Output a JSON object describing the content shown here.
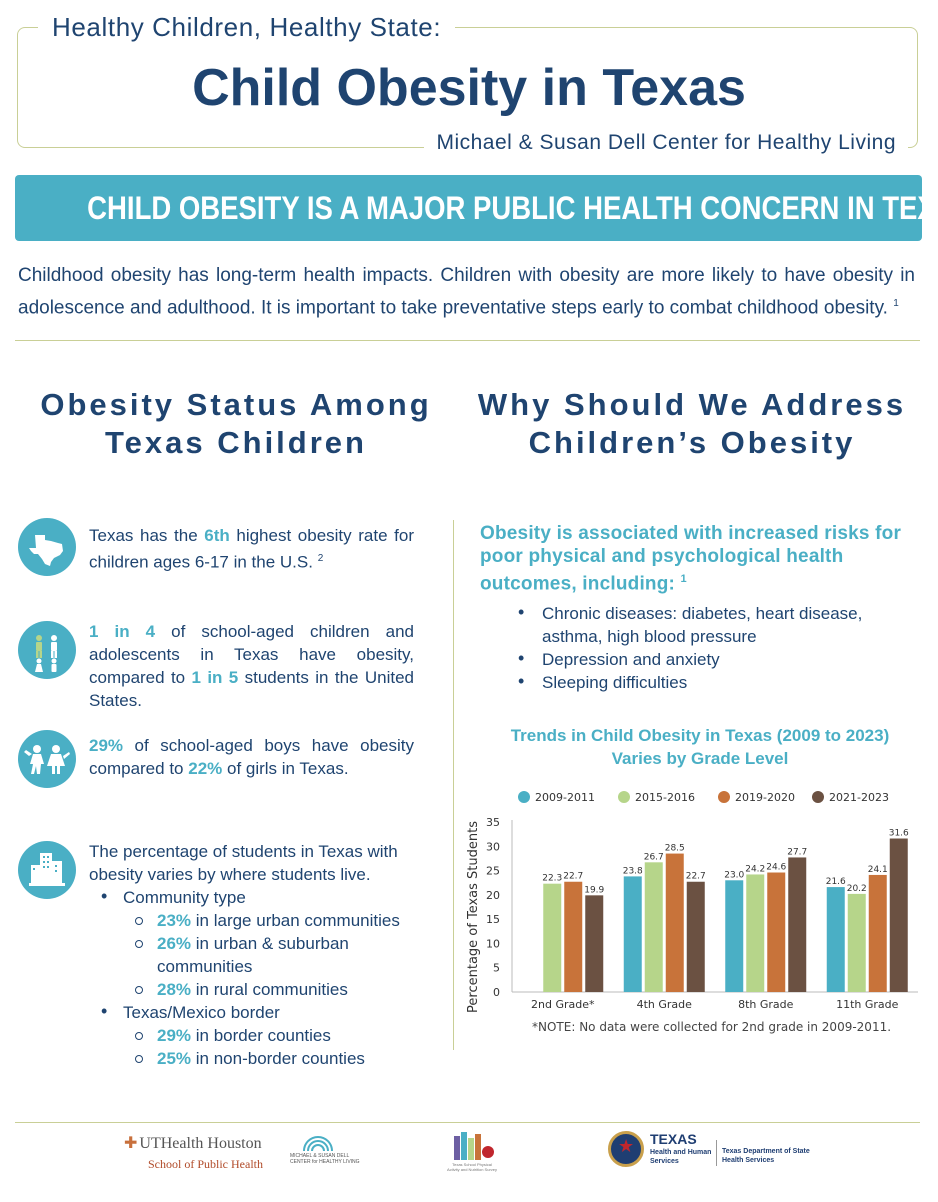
{
  "header": {
    "subtitle": "Healthy Children, Healthy State:",
    "title": "Child Obesity in Texas",
    "org": "Michael & Susan Dell Center for Healthy Living"
  },
  "banner": "CHILD OBESITY IS A MAJOR PUBLIC HEALTH CONCERN IN TEXAS",
  "intro": {
    "text": "Childhood obesity has long-term health impacts. Children with obesity are more likely to have obesity in adolescence and adulthood.  It is important to take preventative steps early to combat childhood obesity.",
    "ref": "1"
  },
  "left": {
    "title_line1": "Obesity Status Among",
    "title_line2": "Texas Children",
    "item1": {
      "pre": "Texas has the ",
      "hl": "6th",
      "post": " highest obesity rate for children ages 6-17 in the U.S.",
      "ref": "2"
    },
    "item2": {
      "hl1": "1 in 4",
      "mid": " of school-aged children and adolescents in Texas have obesity, compared to ",
      "hl2": "1 in 5",
      "post": " students in the United States."
    },
    "item3": {
      "hl1": "29%",
      "mid": " of school-aged boys have obesity compared to ",
      "hl2": "22%",
      "post": " of girls in Texas."
    },
    "item4": {
      "text": "The percentage of students in Texas with obesity varies by where students live.",
      "community_label": "Community type",
      "community": [
        {
          "pct": "23%",
          "label": " in large urban communities"
        },
        {
          "pct": "26%",
          "label": " in urban & suburban communities"
        },
        {
          "pct": "28%",
          "label": " in rural communities"
        }
      ],
      "border_label": "Texas/Mexico border",
      "border": [
        {
          "pct": "29%",
          "label": " in border counties"
        },
        {
          "pct": "25%",
          "label": " in non-border counties"
        }
      ]
    }
  },
  "right": {
    "title_line1": "Why Should We Address",
    "title_line2": "Children’s Obesity",
    "risk_head": "Obesity is associated with increased risks for poor physical and psychological health outcomes, including:",
    "risk_ref": "1",
    "risks": [
      "Chronic diseases: diabetes, heart disease, asthma, high blood pressure",
      "Depression and anxiety",
      "Sleeping difficulties"
    ],
    "chart_title_line1": "Trends in Child Obesity in Texas (2009 to 2023)",
    "chart_title_line2": "Varies by Grade Level",
    "chart_note": "*NOTE: No data were collected for 2nd grade in 2009-2011."
  },
  "chart_data": {
    "type": "bar",
    "title": "Trends in Child Obesity in Texas (2009 to 2023) Varies by Grade Level",
    "ylabel": "Percentage of Texas Students",
    "xlabel": "",
    "ylim": [
      0,
      35
    ],
    "yticks": [
      0,
      5,
      10,
      15,
      20,
      25,
      30,
      35
    ],
    "categories": [
      "2nd Grade*",
      "4th Grade",
      "8th Grade",
      "11th Grade"
    ],
    "legend_position": "top",
    "series": [
      {
        "name": "2009-2011",
        "color": "#4aafc5",
        "values": [
          null,
          23.8,
          23.0,
          21.6
        ],
        "labels": [
          "",
          "23.8",
          "23.0",
          "21.6"
        ]
      },
      {
        "name": "2015-2016",
        "color": "#b6d58a",
        "values": [
          22.3,
          26.7,
          24.2,
          20.2
        ],
        "labels": [
          "22.3",
          "26.7",
          "24.2",
          "20.2"
        ]
      },
      {
        "name": "2019-2020",
        "color": "#c8733a",
        "values": [
          22.7,
          28.5,
          24.6,
          24.1
        ],
        "labels": [
          "22.7",
          "28.5",
          "24.6",
          "24.1"
        ]
      },
      {
        "name": "2021-2023",
        "color": "#6b5142",
        "values": [
          19.9,
          22.7,
          27.7,
          31.6
        ],
        "labels": [
          "19.9",
          "22.7",
          "27.7",
          "31.6"
        ]
      }
    ]
  },
  "footer": {
    "uth_name": "UTHealth Houston",
    "uth_school": "School of Public Health",
    "dell_text": "MICHAEL & SUSAN DELL CENTER for HEALTHY LIVING",
    "spann_caption": "Texas School Physical Activity and Nutrition Survey",
    "tx_name": "TEXAS",
    "tx_hhs": "Health and Human Services",
    "tx_dshs": "Texas Department of State Health Services",
    "colors": {
      "accent": "#4aafc5",
      "navy": "#1f4470",
      "rule": "#c9cf96"
    }
  }
}
